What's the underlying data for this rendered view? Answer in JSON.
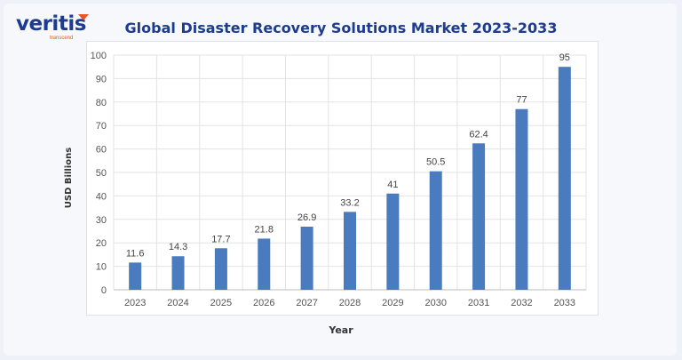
{
  "logo": {
    "text": "veritis",
    "tagline": "transcend"
  },
  "chart_data": {
    "type": "bar",
    "title": "Global Disaster Recovery Solutions Market 2023-2033",
    "xlabel": "Year",
    "ylabel": "USD Billions",
    "categories": [
      "2023",
      "2024",
      "2025",
      "2026",
      "2027",
      "2028",
      "2029",
      "2030",
      "2031",
      "2032",
      "2033"
    ],
    "values": [
      11.6,
      14.3,
      17.7,
      21.8,
      26.9,
      33.2,
      41,
      50.5,
      62.4,
      77,
      95
    ],
    "data_labels": [
      "11.6",
      "14.3",
      "17.7",
      "21.8",
      "26.9",
      "33.2",
      "41",
      "50.5",
      "62.4",
      "77",
      "95"
    ],
    "ylim": [
      0,
      100
    ],
    "yticks": [
      0,
      10,
      20,
      30,
      40,
      50,
      60,
      70,
      80,
      90,
      100
    ],
    "grid": true,
    "bar_color": "#4a7bbf"
  }
}
